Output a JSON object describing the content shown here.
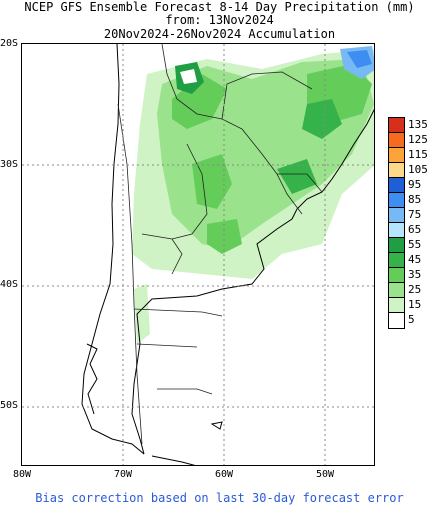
{
  "title": {
    "line1": "NCEP GFS Ensemble Forecast 8-14 Day Precipitation (mm)",
    "line2": "from: 13Nov2024",
    "line3": "20Nov2024-26Nov2024 Accumulation"
  },
  "axes": {
    "lat_labels": [
      "20S",
      "30S",
      "40S",
      "50S"
    ],
    "lon_labels": [
      "80W",
      "70W",
      "60W",
      "50W"
    ]
  },
  "legend": {
    "values": [
      "135",
      "125",
      "115",
      "105",
      "95",
      "85",
      "75",
      "65",
      "55",
      "45",
      "35",
      "25",
      "15",
      "5"
    ],
    "colors": [
      "#d6301d",
      "#f76b1f",
      "#fca33a",
      "#fdd88a",
      "#1f5fd6",
      "#3d8ef0",
      "#76b9f5",
      "#b5e5fb",
      "#1f9e43",
      "#35b34a",
      "#64cd5a",
      "#9be28c",
      "#cff3c5",
      "#ffffff"
    ]
  },
  "footer": "Bias correction based on last 30-day forecast error"
}
